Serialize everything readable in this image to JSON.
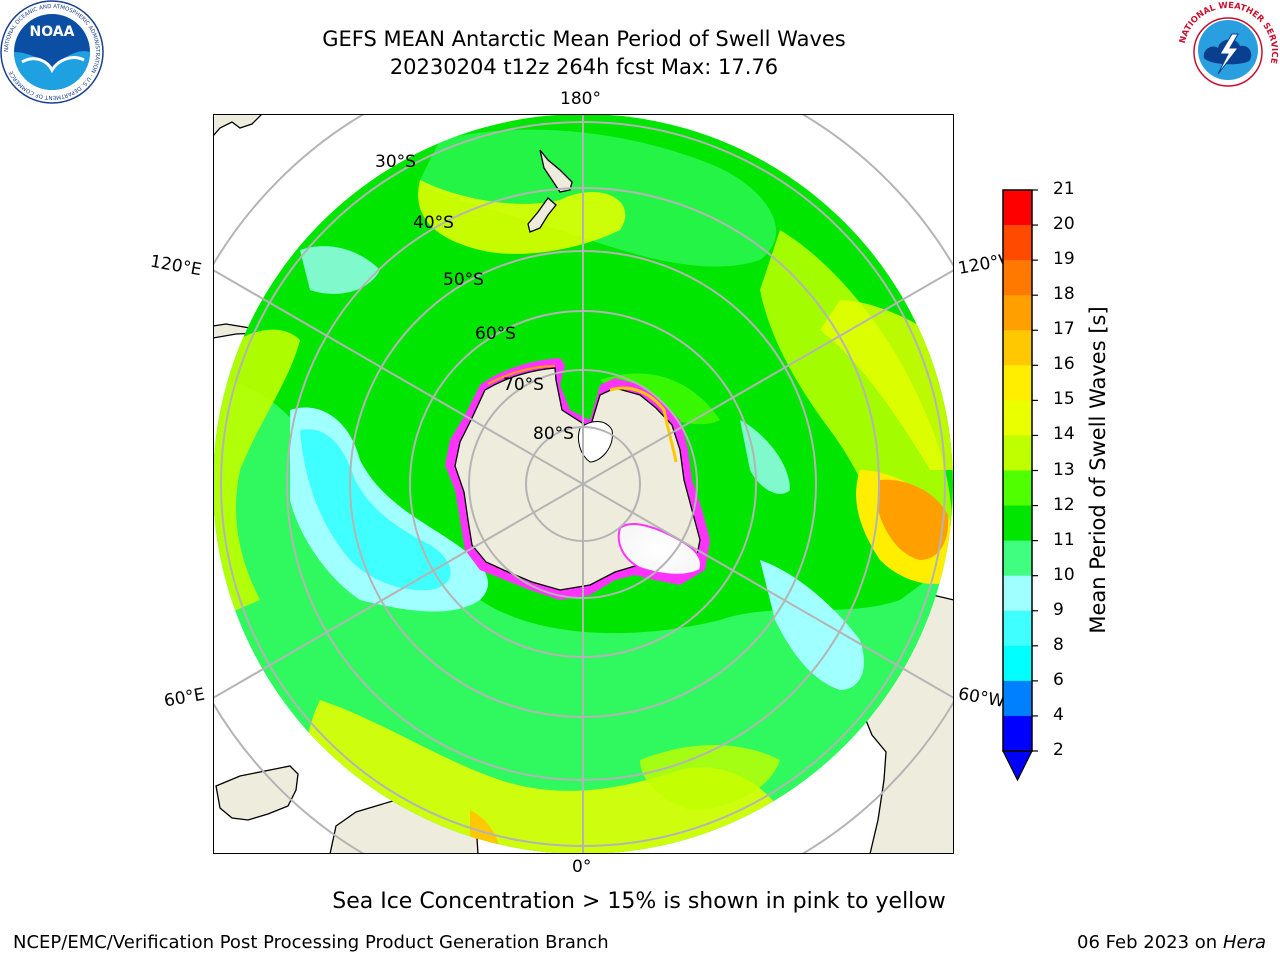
{
  "header": {
    "title_line1": "GEFS MEAN Antarctic Mean Period of Swell Waves",
    "title_line2": "20230204 t12z 264h fcst   Max: 17.76"
  },
  "logos": {
    "left": {
      "icon": "noaa-logo",
      "text": "NOAA",
      "ring_text": "NATIONAL OCEANIC AND ATMOSPHERIC ADMINISTRATION · U.S. DEPARTMENT OF COMMERCE"
    },
    "right": {
      "icon": "national-weather-service-logo",
      "ring_text": "NATIONAL WEATHER SERVICE"
    }
  },
  "map": {
    "projection": "south-polar-stereographic",
    "longitude_labels": {
      "top": "180°",
      "bottom": "0°",
      "upper_left": "120°E",
      "upper_right": "120°W",
      "lower_left": "60°E",
      "lower_right": "60°W"
    },
    "latitude_labels": [
      "30°S",
      "40°S",
      "50°S",
      "60°S",
      "70°S",
      "80°S"
    ],
    "colors": {
      "land": "#eeecdc",
      "coastline": "#000000",
      "graticule": "#b4b4b4",
      "sea_ice_edge": "#ff33ff"
    }
  },
  "colorbar": {
    "label": "Mean Period of Swell Waves [s]",
    "ticks": [
      "2",
      "4",
      "6",
      "8",
      "9",
      "10",
      "11",
      "12",
      "13",
      "14",
      "15",
      "16",
      "17",
      "18",
      "19",
      "20",
      "21"
    ],
    "colors": [
      "#0000ff",
      "#0080ff",
      "#00ffff",
      "#40ffff",
      "#a0ffff",
      "#40ff80",
      "#00e600",
      "#50ff00",
      "#c0ff00",
      "#eaff00",
      "#ffee00",
      "#ffc800",
      "#ffa000",
      "#ff7800",
      "#ff4a00",
      "#ff0000"
    ],
    "extend": "min",
    "under_color": "#0000ff"
  },
  "footnote": "Sea Ice Concentration > 15% is shown in pink to yellow",
  "credit": "NCEP/EMC/Verification Post Processing Product Generation Branch",
  "run_date": {
    "date": "06 Feb 2023 on",
    "machine": "Hera"
  }
}
